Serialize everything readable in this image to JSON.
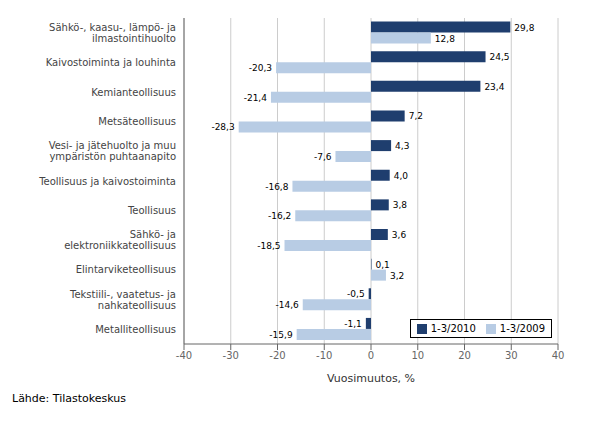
{
  "chart_data": {
    "type": "bar",
    "orientation": "horizontal",
    "categories": [
      "Sähkö-, kaasu-, lämpö- ja ilmastointihuolto",
      "Kaivostoiminta ja louhinta",
      "Kemianteollisuus",
      "Metsäteollisuus",
      "Vesi- ja jätehuolto ja muu ympäristön puhtaanapito",
      "Teollisuus ja kaivostoiminta",
      "Teollisuus",
      "Sähkö- ja elektroniikkateollisuus",
      "Elintarviketeollisuus",
      "Tekstiili-, vaatetus- ja nahkateollisuus",
      "Metalliteollisuus"
    ],
    "series": [
      {
        "name": "1-3/2010",
        "color": "#1F3E6E",
        "values": [
          29.8,
          24.5,
          23.4,
          7.2,
          4.3,
          4.0,
          3.8,
          3.6,
          0.1,
          -0.5,
          -1.1
        ],
        "value_labels": [
          "29,8",
          "24,5",
          "23,4",
          "7,2",
          "4,3",
          "4,0",
          "3,8",
          "3,6",
          "0,1",
          "-0,5",
          "-1,1"
        ]
      },
      {
        "name": "1-3/2009",
        "color": "#B8CCE4",
        "values": [
          12.8,
          -20.3,
          -21.4,
          -28.3,
          -7.6,
          -16.8,
          -16.2,
          -18.5,
          3.2,
          -14.6,
          -15.9
        ],
        "value_labels": [
          "12,8",
          "-20,3",
          "-21,4",
          "-28,3",
          "-7,6",
          "-16,8",
          "-16,2",
          "-18,5",
          "3,2",
          "-14,6",
          "-15,9"
        ]
      }
    ],
    "xlabel": "Vuosimuutos, %",
    "xlim": [
      -40,
      40
    ],
    "xticks": [
      -40,
      -30,
      -20,
      -10,
      0,
      10,
      20,
      30,
      40
    ],
    "grid": true,
    "legend": "lower right",
    "data_labels": true,
    "annotations": [
      "Lähde: Tilastokeskus"
    ]
  }
}
